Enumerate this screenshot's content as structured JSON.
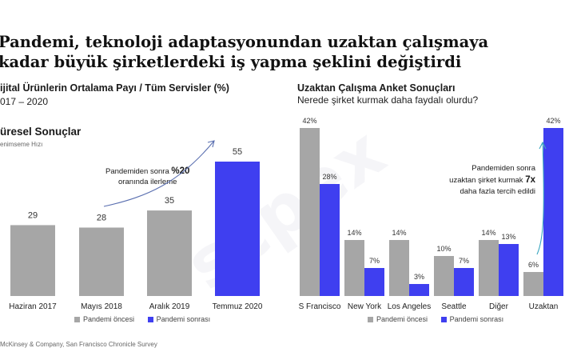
{
  "title_lines": [
    "Pandemi, teknoloji adaptasyonundan uzaktan çalışmaya",
    "kadar büyük şirketlerdeki iş yapma şeklini değiştirdi"
  ],
  "left": {
    "header": "ijital Ürünlerin Ortalama Payı / Tüm Servisler (%)",
    "period": "017 – 2020",
    "section": "üresel Sonuçlar",
    "section_sub": "enimseme Hızı",
    "annotation": {
      "prefix": "Pandemiden sonra ",
      "value": "%20",
      "line2": "oranında ilerleme"
    }
  },
  "right": {
    "header": "Uzaktan Çalışma Anket Sonuçları",
    "question": "Nerede şirket kurmak daha faydalı olurdu?",
    "annotation": {
      "line1": "Pandemiden sonra",
      "line2_prefix": "uzaktan şirket kurmak ",
      "value": "7x",
      "line3": "daha fazla tercih edildi"
    }
  },
  "legend": {
    "before": "Pandemi öncesi",
    "after": "Pandemi sonrası"
  },
  "source": "McKinsey & Company, San Francisco Chronicle Survey",
  "watermark": "scpex",
  "colors": {
    "before": "#a6a6a6",
    "after": "#3f3ff0",
    "arrow": "#5a6fb0"
  },
  "chart_data": [
    {
      "type": "bar",
      "categories": [
        "Haziran 2017",
        "Mayıs 2018",
        "Aralık 2019",
        "Temmuz 2020"
      ],
      "values": [
        29,
        28,
        35,
        55
      ],
      "highlight": [
        false,
        false,
        false,
        true
      ],
      "ylim": [
        0,
        60
      ]
    },
    {
      "type": "bar",
      "categories": [
        "S Francisco",
        "New York",
        "Los Angeles",
        "Seattle",
        "Diğer",
        "Uzaktan"
      ],
      "series": [
        {
          "name": "Pandemi öncesi",
          "values": [
            42,
            14,
            14,
            10,
            14,
            6
          ]
        },
        {
          "name": "Pandemi sonrası",
          "values": [
            28,
            7,
            3,
            7,
            13,
            42
          ]
        }
      ],
      "value_suffix": "%",
      "ylim": [
        0,
        45
      ]
    }
  ]
}
